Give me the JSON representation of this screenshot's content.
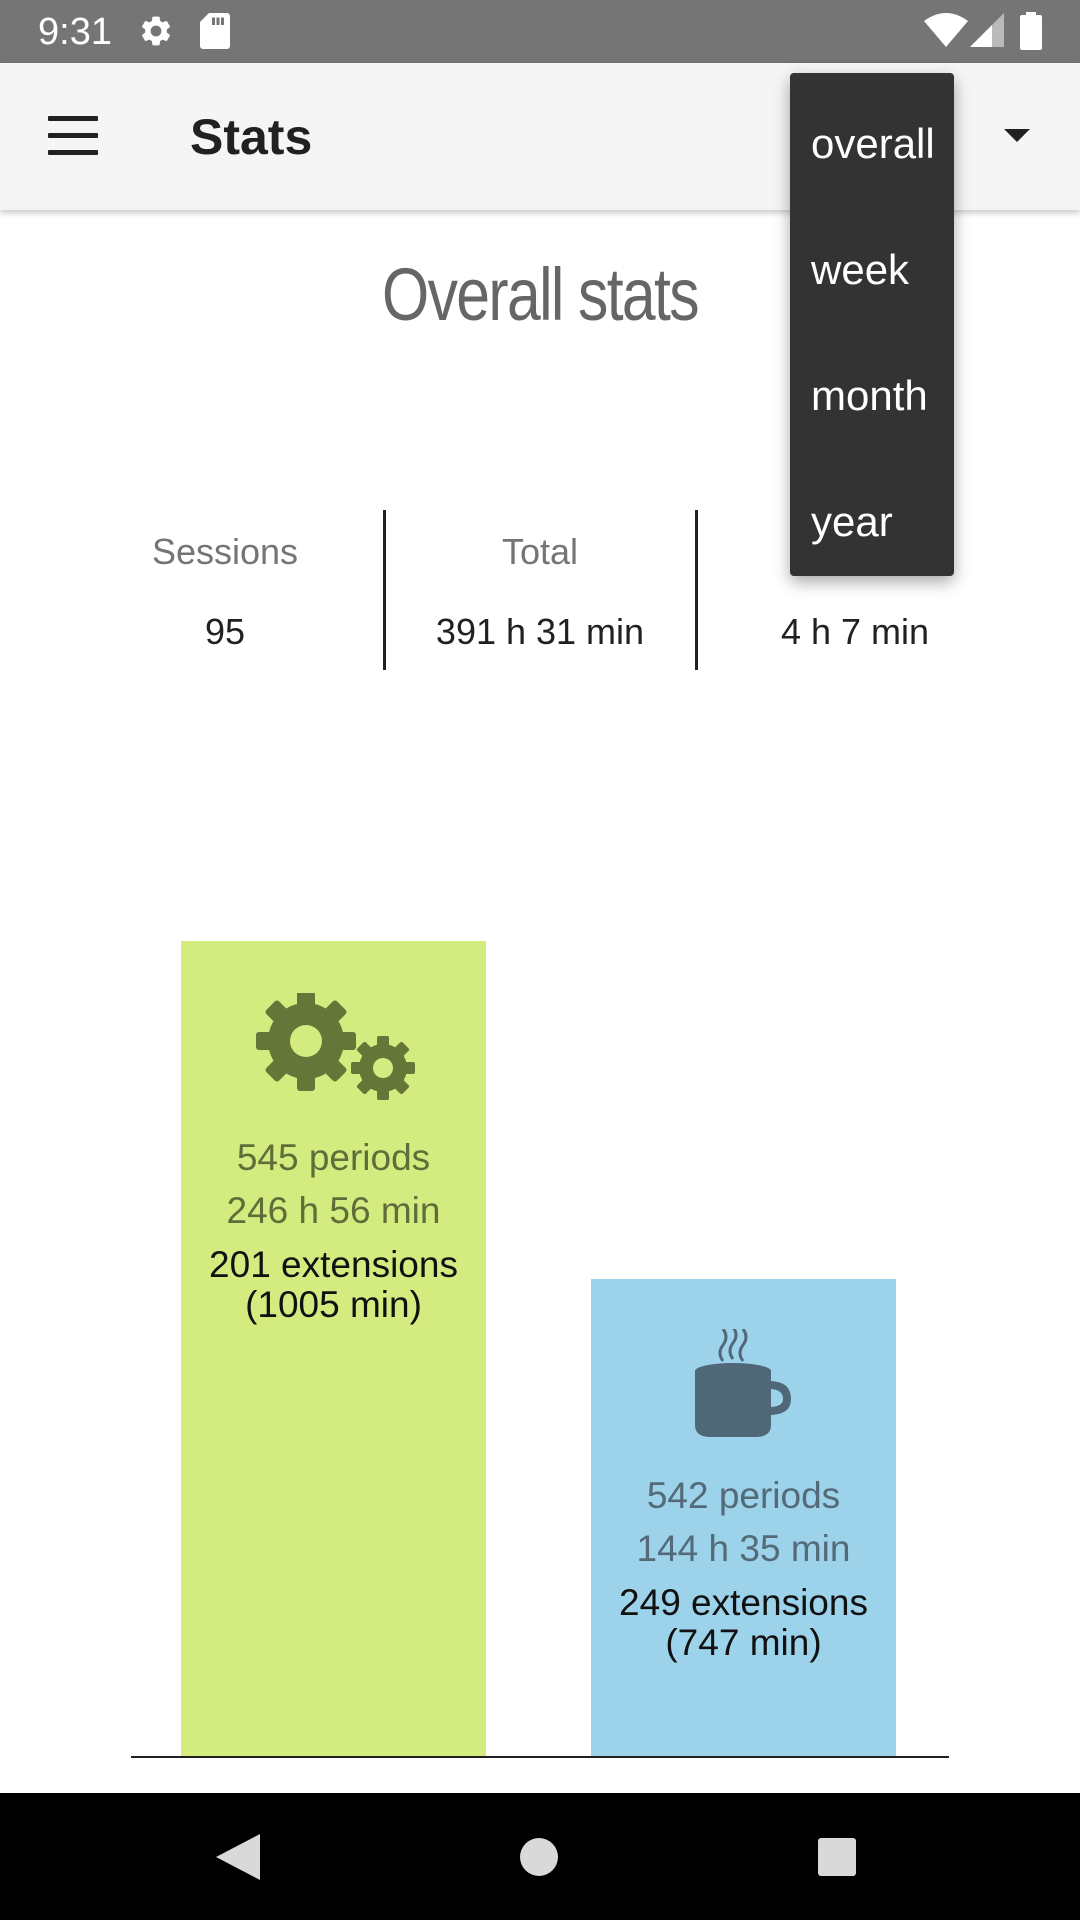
{
  "status_bar": {
    "time": "9:31",
    "icons": [
      "gear-icon",
      "sd-card-icon",
      "wifi-icon",
      "signal-icon",
      "battery-icon"
    ]
  },
  "app_bar": {
    "title": "Stats",
    "menu_icon": "hamburger-menu-icon",
    "dropdown_icon": "dropdown-arrow-icon"
  },
  "dropdown": {
    "items": [
      "overall",
      "week",
      "month",
      "year"
    ]
  },
  "content": {
    "title": "Overall stats"
  },
  "stats": {
    "sessions_label": "Sessions",
    "sessions_value": "95",
    "total_label": "Total",
    "total_value": "391 h 31 min",
    "average_value": "4 h 7 min"
  },
  "chart_data": {
    "type": "bar",
    "categories": [
      "work",
      "break"
    ],
    "values_minutes": [
      14816,
      8675
    ],
    "series": [
      {
        "icon": "gears-icon",
        "color": "#d4eb80",
        "periods": "545 periods",
        "duration": "246 h 56 min",
        "extensions": "201 extensions",
        "extension_minutes": "(1005 min)"
      },
      {
        "icon": "coffee-cup-icon",
        "color": "#9dd3ea",
        "periods": "542 periods",
        "duration": "144 h 35 min",
        "extensions": "249 extensions",
        "extension_minutes": "(747 min)"
      }
    ]
  },
  "nav_bar": {
    "icons": [
      "back-icon",
      "home-icon",
      "recents-icon"
    ]
  }
}
